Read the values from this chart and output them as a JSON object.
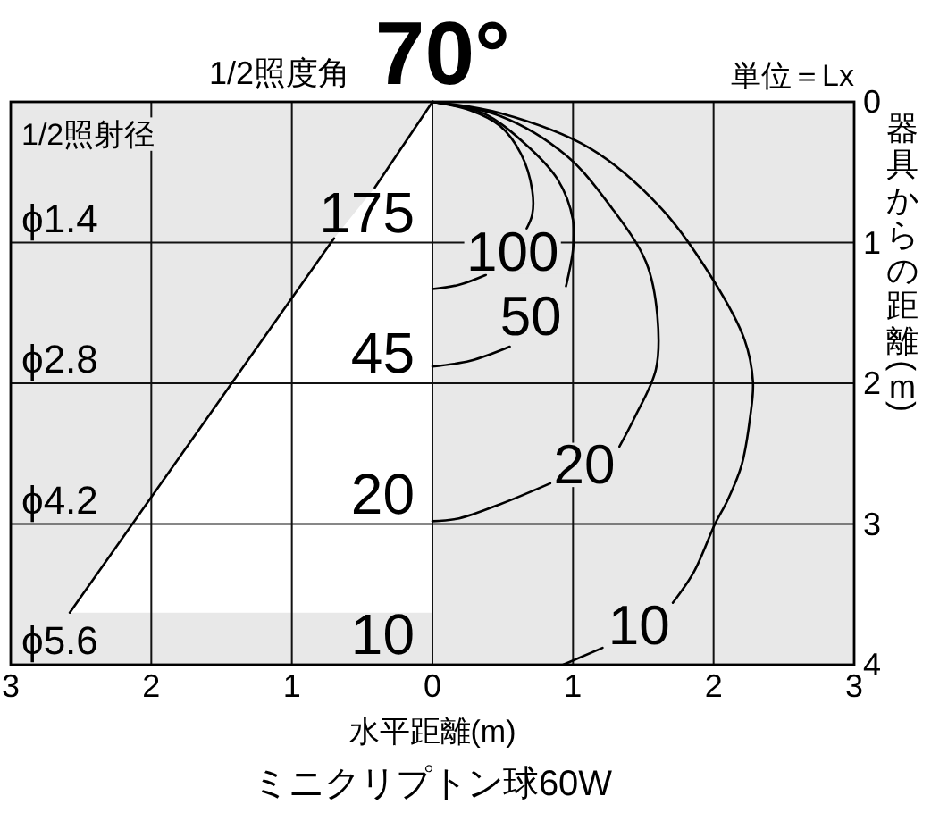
{
  "chart_data": {
    "type": "line",
    "title": "1/2照度角 70°",
    "xlabel": "水平距離(m)",
    "ylabel": "器具からの距離(m)",
    "xlim": [
      -3,
      3
    ],
    "xticks": [
      {
        "value": -3,
        "label": "3"
      },
      {
        "value": -2,
        "label": "2"
      },
      {
        "value": -1,
        "label": "1"
      },
      0,
      1,
      2,
      3
    ],
    "ylim": [
      4,
      0
    ],
    "yticks": [
      0,
      1,
      2,
      3,
      4
    ],
    "grid": true,
    "legend": false,
    "series": [
      {
        "color": "#000000",
        "x": [
          0,
          -0.41,
          null,
          -0.7,
          -2.58
        ],
        "values": [
          0,
          0.61,
          null,
          0.97,
          3.63
        ]
      },
      {
        "name": "100",
        "color": "#000000",
        "x": [
          0,
          0.27,
          0.48,
          0.63,
          0.71,
          0.71,
          0.67,
          0.57,
          0.38,
          0.19,
          0
        ],
        "values": [
          0,
          0.06,
          0.17,
          0.37,
          0.63,
          0.8,
          0.9,
          null,
          1.23,
          1.3,
          1.33
        ]
      },
      {
        "name": "50",
        "color": "#000000",
        "x": [
          0,
          0.36,
          0.65,
          0.89,
          1.0,
          1.0,
          0.95,
          0.7,
          0.55,
          0.27,
          0
        ],
        "values": [
          0,
          0.08,
          0.29,
          0.55,
          0.84,
          1.05,
          1.31,
          null,
          1.74,
          1.84,
          1.88
        ]
      },
      {
        "name": "20",
        "color": "#000000",
        "x": [
          0,
          0.48,
          0.95,
          1.28,
          1.52,
          1.6,
          1.59,
          1.44,
          1.33,
          1.08,
          0.84,
          0.48,
          0.19,
          0
        ],
        "values": [
          0,
          0.1,
          0.38,
          0.76,
          1.14,
          1.52,
          1.9,
          2.24,
          2.45,
          null,
          2.71,
          2.86,
          2.96,
          2.98
        ]
      },
      {
        "name": "10",
        "color": "#000000",
        "x": [
          0,
          0.48,
          1.12,
          1.63,
          2.0,
          2.22,
          2.28,
          2.26,
          2.2,
          2.1,
          2.01,
          1.86,
          1.71,
          1.47,
          1.21,
          0.93
        ],
        "values": [
          0,
          0.08,
          0.33,
          0.76,
          1.27,
          1.69,
          1.99,
          2.24,
          2.58,
          2.83,
          3.0,
          3.34,
          3.56,
          null,
          3.88,
          4.0
        ]
      }
    ],
    "annotations": [
      "単位＝Lx",
      "1/2照射径",
      "ミニクリプトン球60W",
      "ϕ1.4",
      "ϕ2.8",
      "ϕ4.2",
      "ϕ5.6",
      "175",
      "45",
      "20",
      "10"
    ]
  }
}
